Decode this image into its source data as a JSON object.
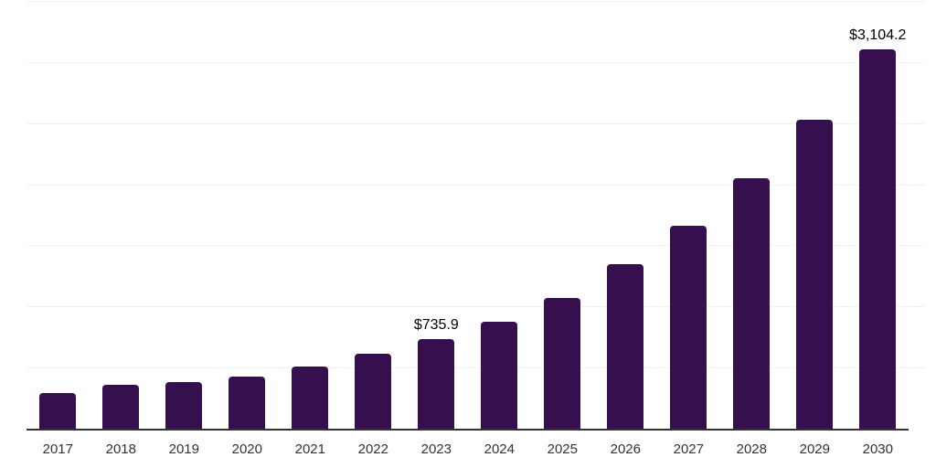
{
  "chart_data": {
    "type": "bar",
    "title": "",
    "xlabel": "",
    "ylabel": "",
    "categories": [
      "2017",
      "2018",
      "2019",
      "2020",
      "2021",
      "2022",
      "2023",
      "2024",
      "2025",
      "2026",
      "2027",
      "2028",
      "2029",
      "2030"
    ],
    "values": [
      293,
      358,
      380,
      428,
      508,
      610,
      735.9,
      877,
      1072,
      1346,
      1663,
      2051,
      2525,
      3104.2
    ],
    "value_prefix": "$",
    "labeled_points": [
      {
        "category": "2023",
        "label": "$735.9"
      },
      {
        "category": "2030",
        "label": "$3,104.2"
      }
    ],
    "ylim": [
      0,
      3500
    ],
    "gridline_step": 500,
    "grid": true,
    "legend_position": "none",
    "colors": {
      "bar": "#36104E",
      "grid": "#F2F2F2",
      "axis": "#333333",
      "tick_text": "#333333",
      "label_text": "#000000",
      "background": "#FFFFFF"
    }
  }
}
